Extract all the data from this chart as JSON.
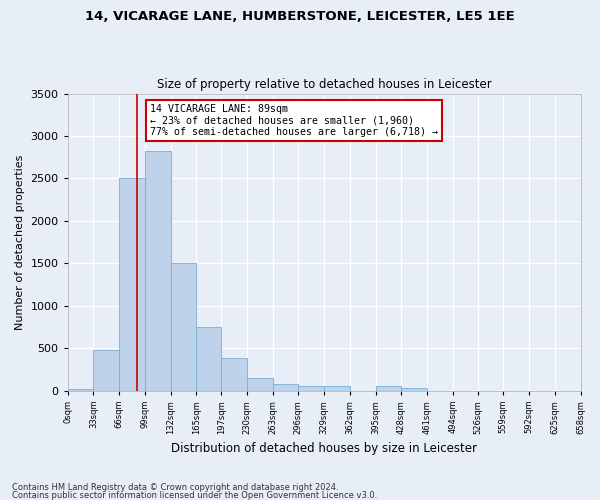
{
  "title1": "14, VICARAGE LANE, HUMBERSTONE, LEICESTER, LE5 1EE",
  "title2": "Size of property relative to detached houses in Leicester",
  "xlabel": "Distribution of detached houses by size in Leicester",
  "ylabel": "Number of detached properties",
  "bar_color": "#bed3ea",
  "bar_edge_color": "#7aadd4",
  "background_color": "#e8eef8",
  "grid_color": "#ffffff",
  "red_line_x": 89,
  "annotation_text": "14 VICARAGE LANE: 89sqm\n← 23% of detached houses are smaller (1,960)\n77% of semi-detached houses are larger (6,718) →",
  "annotation_box_color": "#ffffff",
  "annotation_border_color": "#cc0000",
  "footnote1": "Contains HM Land Registry data © Crown copyright and database right 2024.",
  "footnote2": "Contains public sector information licensed under the Open Government Licence v3.0.",
  "bin_edges": [
    0,
    33,
    66,
    99,
    132,
    165,
    197,
    230,
    263,
    296,
    329,
    362,
    395,
    428,
    461,
    494,
    526,
    559,
    592,
    625,
    658
  ],
  "bin_counts": [
    25,
    480,
    2510,
    2820,
    1510,
    750,
    380,
    145,
    75,
    55,
    55,
    0,
    55,
    30,
    0,
    0,
    0,
    0,
    0,
    0
  ],
  "ylim": [
    0,
    3500
  ],
  "yticks": [
    0,
    500,
    1000,
    1500,
    2000,
    2500,
    3000,
    3500
  ],
  "figsize": [
    6.0,
    5.0
  ],
  "dpi": 100
}
